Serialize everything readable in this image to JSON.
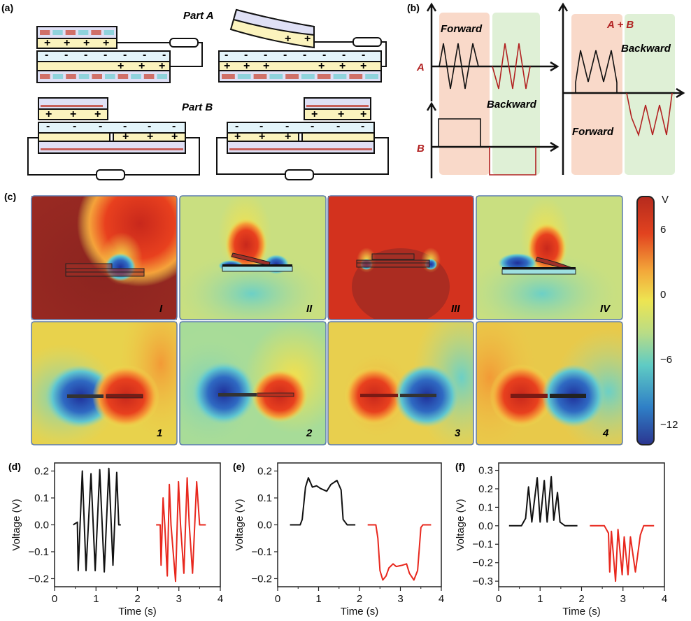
{
  "panels": {
    "a": {
      "label": "(a)",
      "part_a": "Part A",
      "part_b": "Part B"
    },
    "b": {
      "label": "(b)",
      "forward": "Forward",
      "backward": "Backward",
      "signal_a": "A",
      "signal_b": "B",
      "sum": "A + B",
      "forward_color": "#f9d9c9",
      "backward_color": "#dff0d6",
      "reverse_color": "#b22222"
    },
    "c": {
      "label": "(c)",
      "states_top": [
        "I",
        "II",
        "III",
        "IV"
      ],
      "states_bottom": [
        "1",
        "2",
        "3",
        "4"
      ],
      "colorbar": {
        "unit": "V",
        "ticks": [
          "6",
          "0",
          "−6",
          "−12"
        ],
        "range": [
          -15,
          9
        ]
      }
    },
    "d": {
      "label": "(d)"
    },
    "e": {
      "label": "(e)"
    },
    "f": {
      "label": "(f)"
    }
  },
  "chart_data": [
    {
      "id": "d",
      "type": "line",
      "xlabel": "Time (s)",
      "ylabel": "Voltage (V)",
      "xlim": [
        0,
        4
      ],
      "ylim": [
        -0.23,
        0.23
      ],
      "xticks": [
        "0",
        "1",
        "2",
        "3",
        "4"
      ],
      "yticks": [
        "0.2",
        "0.1",
        "0.0",
        "−0.1",
        "−0.2"
      ],
      "ytick_values": [
        0.2,
        0.1,
        0,
        -0.1,
        -0.2
      ],
      "series": [
        {
          "color": "#111111",
          "points": [
            [
              0.45,
              0
            ],
            [
              0.55,
              0.01
            ],
            [
              0.57,
              -0.17
            ],
            [
              0.67,
              0.2
            ],
            [
              0.76,
              -0.17
            ],
            [
              0.88,
              0.19
            ],
            [
              0.98,
              -0.17
            ],
            [
              1.09,
              0.205
            ],
            [
              1.2,
              -0.175
            ],
            [
              1.31,
              0.21
            ],
            [
              1.41,
              -0.15
            ],
            [
              1.5,
              0.195
            ],
            [
              1.55,
              0
            ],
            [
              1.6,
              0
            ]
          ]
        },
        {
          "color": "#e8281e",
          "points": [
            [
              2.45,
              0
            ],
            [
              2.55,
              0
            ],
            [
              2.57,
              -0.15
            ],
            [
              2.62,
              0.1
            ],
            [
              2.66,
              0
            ],
            [
              2.72,
              -0.19
            ],
            [
              2.77,
              0.15
            ],
            [
              2.81,
              0
            ],
            [
              2.92,
              -0.21
            ],
            [
              2.99,
              0.16
            ],
            [
              3.04,
              0
            ],
            [
              3.12,
              -0.18
            ],
            [
              3.2,
              0.175
            ],
            [
              3.25,
              0
            ],
            [
              3.33,
              -0.18
            ],
            [
              3.43,
              0.16
            ],
            [
              3.5,
              0
            ],
            [
              3.65,
              0
            ]
          ]
        }
      ]
    },
    {
      "id": "e",
      "type": "line",
      "xlabel": "Time (s)",
      "ylabel": "Voltage (V)",
      "xlim": [
        0,
        4
      ],
      "ylim": [
        -0.23,
        0.23
      ],
      "xticks": [
        "0",
        "1",
        "2",
        "3",
        "4"
      ],
      "yticks": [
        "0.2",
        "0.1",
        "0.0",
        "−0.1",
        "−0.2"
      ],
      "ytick_values": [
        0.2,
        0.1,
        0,
        -0.1,
        -0.2
      ],
      "series": [
        {
          "color": "#111111",
          "points": [
            [
              0.3,
              0
            ],
            [
              0.55,
              0
            ],
            [
              0.6,
              0.02
            ],
            [
              0.68,
              0.14
            ],
            [
              0.75,
              0.175
            ],
            [
              0.85,
              0.14
            ],
            [
              0.95,
              0.145
            ],
            [
              1.05,
              0.135
            ],
            [
              1.2,
              0.125
            ],
            [
              1.3,
              0.15
            ],
            [
              1.45,
              0.165
            ],
            [
              1.55,
              0.13
            ],
            [
              1.6,
              0.02
            ],
            [
              1.7,
              0
            ],
            [
              1.9,
              0
            ]
          ]
        },
        {
          "color": "#e8281e",
          "points": [
            [
              2.2,
              0
            ],
            [
              2.4,
              0
            ],
            [
              2.45,
              -0.05
            ],
            [
              2.5,
              -0.17
            ],
            [
              2.57,
              -0.205
            ],
            [
              2.65,
              -0.19
            ],
            [
              2.72,
              -0.16
            ],
            [
              2.82,
              -0.145
            ],
            [
              2.9,
              -0.155
            ],
            [
              3.05,
              -0.15
            ],
            [
              3.15,
              -0.145
            ],
            [
              3.22,
              -0.18
            ],
            [
              3.33,
              -0.205
            ],
            [
              3.42,
              -0.17
            ],
            [
              3.5,
              -0.01
            ],
            [
              3.55,
              0
            ],
            [
              3.75,
              0
            ]
          ]
        }
      ]
    },
    {
      "id": "f",
      "type": "line",
      "xlabel": "Time (s)",
      "ylabel": "Voltage (V)",
      "xlim": [
        0,
        4
      ],
      "ylim": [
        -0.33,
        0.34
      ],
      "xticks": [
        "0",
        "1",
        "2",
        "3",
        "4"
      ],
      "yticks": [
        "0.3",
        "0.2",
        "0.1",
        "0.0",
        "−0.1",
        "−0.2",
        "−0.3"
      ],
      "ytick_values": [
        0.3,
        0.2,
        0.1,
        0,
        -0.1,
        -0.2,
        -0.3
      ],
      "series": [
        {
          "color": "#111111",
          "points": [
            [
              0.25,
              0
            ],
            [
              0.55,
              0
            ],
            [
              0.65,
              0.04
            ],
            [
              0.72,
              0.21
            ],
            [
              0.8,
              0.02
            ],
            [
              0.93,
              0.26
            ],
            [
              1.0,
              0.02
            ],
            [
              1.1,
              0.245
            ],
            [
              1.17,
              0.02
            ],
            [
              1.27,
              0.265
            ],
            [
              1.33,
              0.03
            ],
            [
              1.42,
              0.18
            ],
            [
              1.48,
              0.02
            ],
            [
              1.6,
              0
            ],
            [
              1.9,
              0
            ]
          ]
        },
        {
          "color": "#e8281e",
          "points": [
            [
              2.2,
              0
            ],
            [
              2.55,
              0
            ],
            [
              2.65,
              -0.04
            ],
            [
              2.68,
              -0.25
            ],
            [
              2.72,
              -0.03
            ],
            [
              2.82,
              -0.3
            ],
            [
              2.88,
              -0.02
            ],
            [
              2.98,
              -0.265
            ],
            [
              3.03,
              -0.06
            ],
            [
              3.12,
              -0.265
            ],
            [
              3.18,
              -0.06
            ],
            [
              3.3,
              -0.25
            ],
            [
              3.42,
              -0.05
            ],
            [
              3.5,
              0
            ],
            [
              3.75,
              0
            ]
          ]
        }
      ]
    }
  ]
}
